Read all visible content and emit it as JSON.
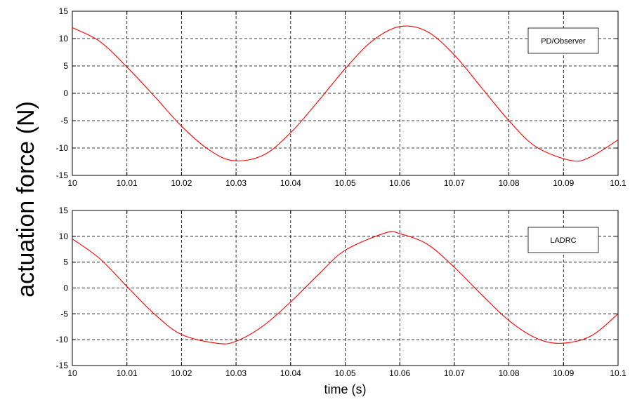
{
  "chart_data": [
    {
      "type": "line",
      "xlabel": "",
      "ylabel": "actuation force (N)",
      "xlim": [
        10,
        10.1
      ],
      "ylim": [
        -15,
        15
      ],
      "x_ticks": [
        10,
        10.01,
        10.02,
        10.03,
        10.04,
        10.05,
        10.06,
        10.07,
        10.08,
        10.09,
        10.1
      ],
      "x_tick_labels": [
        "10",
        "10.01",
        "10.02",
        "10.03",
        "10.04",
        "10.05",
        "10.06",
        "10.07",
        "10.08",
        "10.09",
        "10.1"
      ],
      "y_ticks": [
        -15,
        -10,
        -5,
        0,
        5,
        10,
        15
      ],
      "y_tick_labels": [
        "-15",
        "-10",
        "-5",
        "0",
        "5",
        "10",
        "15"
      ],
      "grid": true,
      "legend_position": "top-right",
      "series": [
        {
          "name": "PD/Observer",
          "color": "#ff0000",
          "x": [
            10,
            10.005,
            10.01,
            10.015,
            10.02,
            10.025,
            10.0295,
            10.035,
            10.04,
            10.045,
            10.05,
            10.055,
            10.06,
            10.065,
            10.07,
            10.075,
            10.08,
            10.085,
            10.0915,
            10.095,
            10.1
          ],
          "y": [
            12,
            9.5,
            4.8,
            -0.5,
            -6.0,
            -10.3,
            -12.3,
            -11.3,
            -7.2,
            -1.5,
            4.5,
            9.6,
            12.2,
            11.3,
            7.0,
            1.0,
            -5.0,
            -9.8,
            -12.3,
            -11.6,
            -8.5
          ]
        }
      ]
    },
    {
      "type": "line",
      "xlabel": "time (s)",
      "ylabel": "",
      "xlim": [
        10,
        10.1
      ],
      "ylim": [
        -15,
        15
      ],
      "x_ticks": [
        10,
        10.01,
        10.02,
        10.03,
        10.04,
        10.05,
        10.06,
        10.07,
        10.08,
        10.09,
        10.1
      ],
      "x_tick_labels": [
        "10",
        "10.01",
        "10.02",
        "10.03",
        "10.04",
        "10.05",
        "10.06",
        "10.07",
        "10.08",
        "10.09",
        "10.1"
      ],
      "y_ticks": [
        -15,
        -10,
        -5,
        0,
        5,
        10,
        15
      ],
      "y_tick_labels": [
        "-15",
        "-10",
        "-5",
        "0",
        "5",
        "10",
        "15"
      ],
      "grid": true,
      "legend_position": "top-right",
      "series": [
        {
          "name": "LADRC",
          "color": "#ff0000",
          "x": [
            10,
            10.005,
            10.01,
            10.015,
            10.02,
            10.0265,
            10.03,
            10.035,
            10.04,
            10.045,
            10.05,
            10.0575,
            10.06,
            10.065,
            10.07,
            10.075,
            10.08,
            10.085,
            10.0895,
            10.095,
            10.1
          ],
          "y": [
            9.5,
            5.7,
            0.3,
            -5.0,
            -9.0,
            -10.7,
            -10.3,
            -7.3,
            -2.7,
            2.5,
            7.3,
            10.7,
            10.5,
            8.5,
            4.0,
            -1.3,
            -6.3,
            -9.7,
            -10.7,
            -9.3,
            -5.0
          ]
        }
      ]
    }
  ]
}
